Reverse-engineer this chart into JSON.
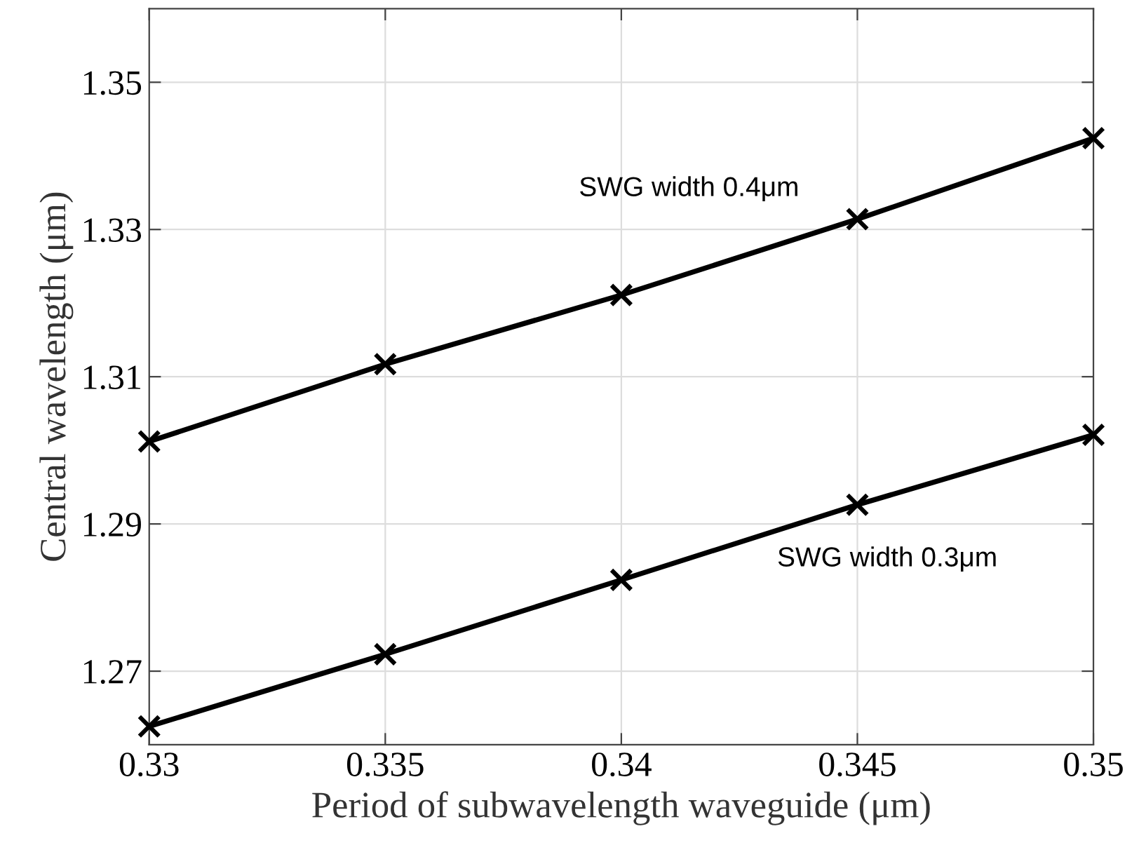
{
  "chart_data": {
    "type": "line",
    "xlabel": "Period of subwavelength waveguide (μm)",
    "ylabel": "Central wavelength (μm)",
    "x": [
      0.33,
      0.335,
      0.34,
      0.345,
      0.35
    ],
    "series": [
      {
        "color": "#000000",
        "values": [
          1.3012,
          1.3117,
          1.3211,
          1.3314,
          1.3424
        ]
      },
      {
        "color": "#000000",
        "values": [
          1.2625,
          1.2723,
          1.2824,
          1.2926,
          1.3021
        ]
      }
    ],
    "annotations": [
      "SWG width 0.4μm",
      "SWG width 0.3μm"
    ],
    "xlim": [
      0.33,
      0.35
    ],
    "xticks": [
      0.33,
      0.335,
      0.34,
      0.345,
      0.35
    ],
    "ylim": [
      1.26,
      1.36
    ],
    "yticks": [
      1.27,
      1.29,
      1.31,
      1.33,
      1.35
    ],
    "grid": true,
    "marker": "cross",
    "line_style": "solid",
    "legend": false
  }
}
